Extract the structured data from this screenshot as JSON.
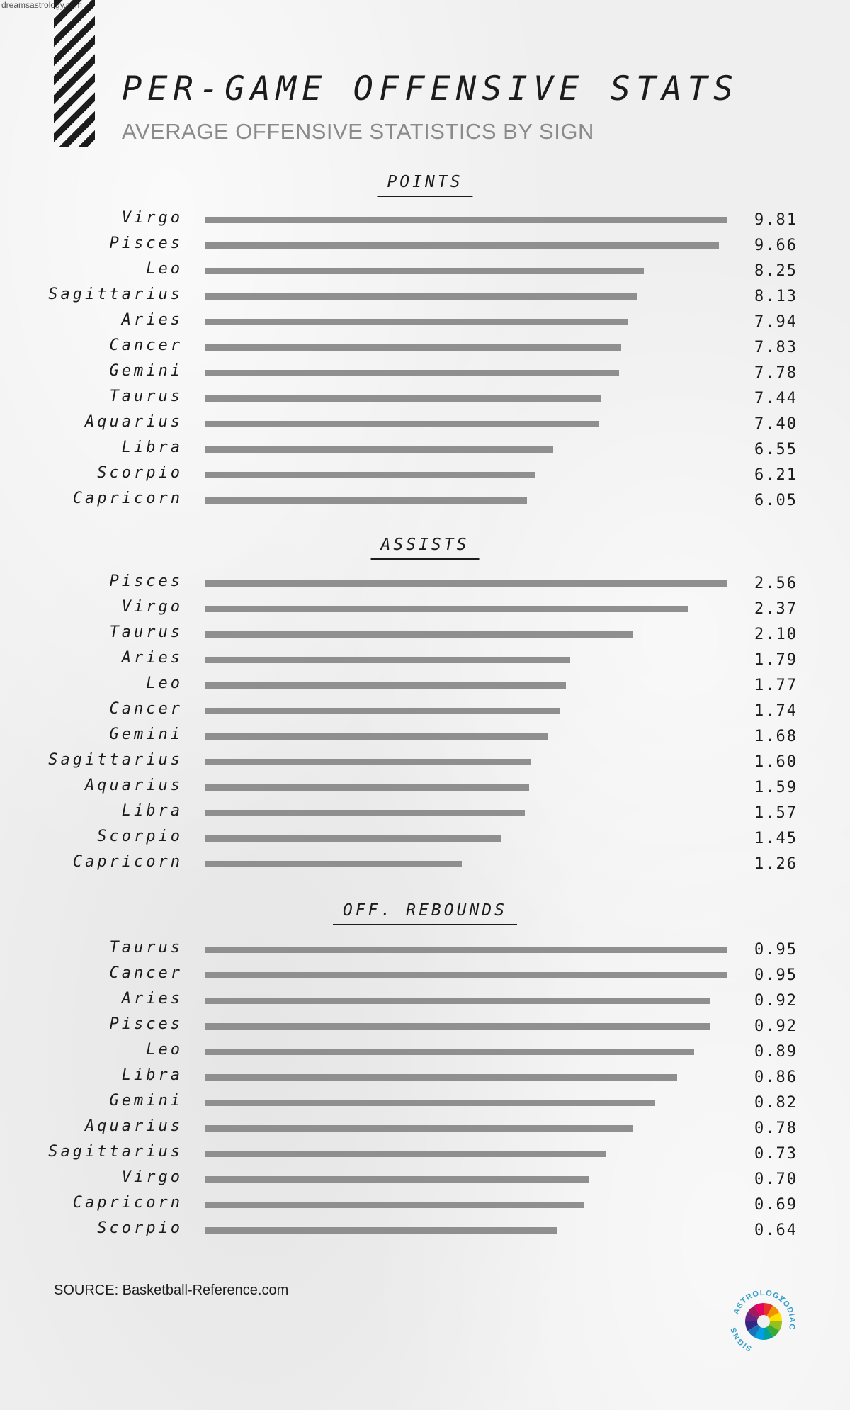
{
  "watermark": "dreamsastrology.com",
  "title": "PER-GAME OFFENSIVE STATS",
  "subtitle": "AVERAGE OFFENSIVE STATISTICS BY SIGN",
  "source": "SOURCE: Basketball-Reference.com",
  "badge": {
    "top_text": "ASTROLOGY",
    "right_text": "ZODIAC",
    "left_text": "SIGNS",
    "icon": "zodiac-wheel-icon"
  },
  "colors": {
    "bar": "#8f8f8f",
    "text": "#1c1c1c",
    "subtitle": "#8a8a8a",
    "background": "#efefef"
  },
  "chart_data": [
    {
      "type": "bar",
      "orientation": "horizontal",
      "title": "POINTS",
      "categories": [
        "Virgo",
        "Pisces",
        "Leo",
        "Sagittarius",
        "Aries",
        "Cancer",
        "Gemini",
        "Taurus",
        "Aquarius",
        "Libra",
        "Scorpio",
        "Capricorn"
      ],
      "values": [
        9.81,
        9.66,
        8.25,
        8.13,
        7.94,
        7.83,
        7.78,
        7.44,
        7.4,
        6.55,
        6.21,
        6.05
      ],
      "labels": [
        "9.81",
        "9.66",
        "8.25",
        "8.13",
        "7.94",
        "7.83",
        "7.78",
        "7.44",
        "7.40",
        "6.55",
        "6.21",
        "6.05"
      ],
      "xlim": [
        0,
        9.81
      ]
    },
    {
      "type": "bar",
      "orientation": "horizontal",
      "title": "ASSISTS",
      "categories": [
        "Pisces",
        "Virgo",
        "Taurus",
        "Aries",
        "Leo",
        "Cancer",
        "Gemini",
        "Sagittarius",
        "Aquarius",
        "Libra",
        "Scorpio",
        "Capricorn"
      ],
      "values": [
        2.56,
        2.37,
        2.1,
        1.79,
        1.77,
        1.74,
        1.68,
        1.6,
        1.59,
        1.57,
        1.45,
        1.26
      ],
      "labels": [
        "2.56",
        "2.37",
        "2.10",
        "1.79",
        "1.77",
        "1.74",
        "1.68",
        "1.60",
        "1.59",
        "1.57",
        "1.45",
        "1.26"
      ],
      "xlim": [
        0,
        2.56
      ]
    },
    {
      "type": "bar",
      "orientation": "horizontal",
      "title": "OFF. REBOUNDS",
      "categories": [
        "Taurus",
        "Cancer",
        "Aries",
        "Pisces",
        "Leo",
        "Libra",
        "Gemini",
        "Aquarius",
        "Sagittarius",
        "Virgo",
        "Capricorn",
        "Scorpio"
      ],
      "values": [
        0.95,
        0.95,
        0.92,
        0.92,
        0.89,
        0.86,
        0.82,
        0.78,
        0.73,
        0.7,
        0.69,
        0.64
      ],
      "labels": [
        "0.95",
        "0.95",
        "0.92",
        "0.92",
        "0.89",
        "0.86",
        "0.82",
        "0.78",
        "0.73",
        "0.70",
        "0.69",
        "0.64"
      ],
      "xlim": [
        0,
        0.95
      ]
    }
  ]
}
